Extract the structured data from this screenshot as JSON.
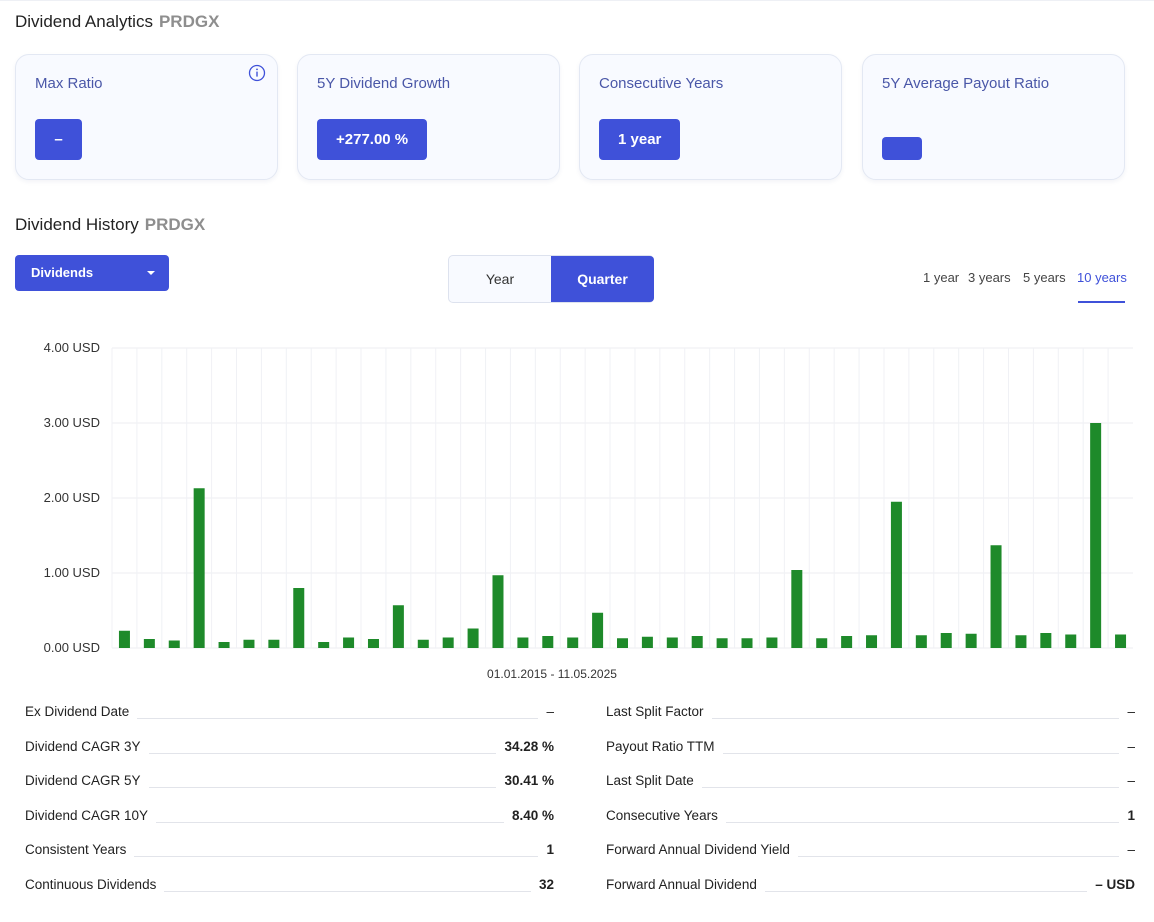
{
  "analytics": {
    "title": "Dividend Analytics",
    "ticker": "PRDGX",
    "cards": [
      {
        "label": "Max Ratio",
        "value": "–"
      },
      {
        "label": "5Y Dividend Growth",
        "value": "+277.00 %"
      },
      {
        "label": "Consecutive Years",
        "value": "1 year"
      },
      {
        "label": "5Y Average Payout Ratio",
        "value": ""
      }
    ]
  },
  "history": {
    "title": "Dividend History",
    "ticker": "PRDGX",
    "dropdown_label": "Dividends",
    "toggle": {
      "year": "Year",
      "quarter": "Quarter",
      "selected": "Quarter"
    },
    "ranges": [
      "1 year",
      "3 years",
      "5 years",
      "10 years"
    ],
    "selected_range": "10 years"
  },
  "chart_data": {
    "type": "bar",
    "xlabel": "01.01.2015 - 11.05.2025",
    "ylabel": "",
    "ylim": [
      0,
      4
    ],
    "yticks": [
      "0.00 USD",
      "1.00 USD",
      "2.00 USD",
      "3.00 USD",
      "4.00 USD"
    ],
    "grid": true,
    "bar_color": "#1e8a2a",
    "values": [
      0.23,
      0.12,
      0.1,
      2.13,
      0.08,
      0.11,
      0.11,
      0.8,
      0.08,
      0.14,
      0.12,
      0.57,
      0.11,
      0.14,
      0.26,
      0.97,
      0.14,
      0.16,
      0.14,
      0.47,
      0.13,
      0.15,
      0.14,
      0.16,
      0.13,
      0.13,
      0.14,
      1.04,
      0.13,
      0.16,
      0.17,
      1.95,
      0.17,
      0.2,
      0.19,
      1.37,
      0.17,
      0.2,
      0.18,
      3.0,
      0.18
    ]
  },
  "stats": {
    "left": [
      {
        "label": "Ex Dividend Date",
        "value": "–"
      },
      {
        "label": "Dividend CAGR 3Y",
        "value": "34.28 %"
      },
      {
        "label": "Dividend CAGR 5Y",
        "value": "30.41 %"
      },
      {
        "label": "Dividend CAGR 10Y",
        "value": "8.40 %"
      },
      {
        "label": "Consistent Years",
        "value": "1"
      },
      {
        "label": "Continuous Dividends",
        "value": "32"
      }
    ],
    "right": [
      {
        "label": "Last Split Factor",
        "value": "–"
      },
      {
        "label": "Payout Ratio TTM",
        "value": "–"
      },
      {
        "label": "Last Split Date",
        "value": "–"
      },
      {
        "label": "Consecutive Years",
        "value": "1"
      },
      {
        "label": "Forward Annual Dividend Yield",
        "value": "–"
      },
      {
        "label": "Forward Annual Dividend",
        "value": "– USD"
      }
    ]
  },
  "colors": {
    "accent": "#3f51d9",
    "bar": "#1e8a2a",
    "card_label": "#4a57a8"
  }
}
